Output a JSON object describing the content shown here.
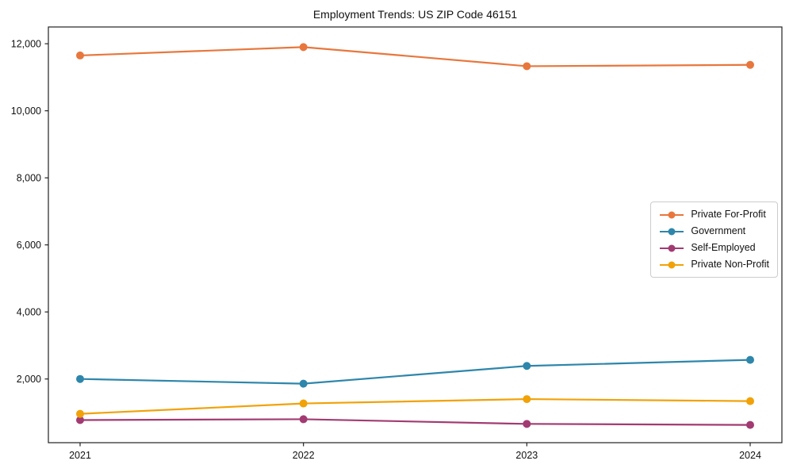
{
  "chart_data": {
    "type": "line",
    "title": "Employment Trends: US ZIP Code 46151",
    "xlabel": "",
    "ylabel": "",
    "x": [
      "2021",
      "2022",
      "2023",
      "2024"
    ],
    "series": [
      {
        "name": "Private For-Profit",
        "color": "#E8773D",
        "values": [
          11650,
          11900,
          11330,
          11370
        ]
      },
      {
        "name": "Government",
        "color": "#2E86AB",
        "values": [
          2000,
          1860,
          2390,
          2570
        ]
      },
      {
        "name": "Self-Employed",
        "color": "#A23B72",
        "values": [
          775,
          800,
          660,
          630
        ]
      },
      {
        "name": "Private Non-Profit",
        "color": "#F1A208",
        "values": [
          960,
          1270,
          1400,
          1340
        ]
      }
    ],
    "ylim": [
      100,
      12500
    ],
    "yticks": [
      2000,
      4000,
      6000,
      8000,
      10000,
      12000
    ],
    "ytick_labels": [
      "2,000",
      "4,000",
      "6,000",
      "8,000",
      "10,000",
      "12,000"
    ],
    "grid": false,
    "legend_position": "center right",
    "axis_color": "#222222",
    "tick_label_color": "#111111"
  }
}
